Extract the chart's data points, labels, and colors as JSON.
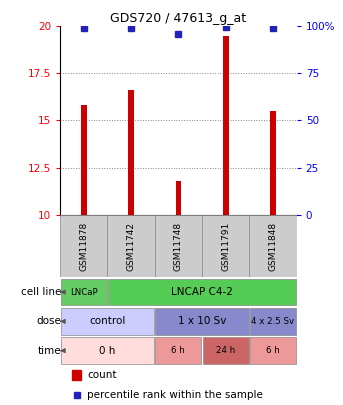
{
  "title": "GDS720 / 47613_g_at",
  "samples": [
    "GSM11878",
    "GSM11742",
    "GSM11748",
    "GSM11791",
    "GSM11848"
  ],
  "bar_values": [
    15.8,
    16.6,
    11.8,
    19.5,
    15.5
  ],
  "percentile_values": [
    99,
    99,
    96,
    99.5,
    99
  ],
  "ylim_left": [
    10,
    20
  ],
  "ylim_right": [
    0,
    100
  ],
  "yticks_left": [
    10,
    12.5,
    15,
    17.5,
    20
  ],
  "yticks_right": [
    0,
    25,
    50,
    75,
    100
  ],
  "ytick_labels_right": [
    "0",
    "25",
    "50",
    "75",
    "100%"
  ],
  "bar_color": "#cc0000",
  "dot_color": "#2222bb",
  "grid_color": "#888888",
  "sample_box_color": "#cccccc",
  "cell_line_data": [
    {
      "label": "LNCaP",
      "span": [
        0,
        1
      ],
      "color": "#66cc66"
    },
    {
      "label": "LNCAP C4-2",
      "span": [
        1,
        5
      ],
      "color": "#55cc55"
    }
  ],
  "dose_data": [
    {
      "label": "control",
      "span": [
        0,
        2
      ],
      "color": "#ccccff"
    },
    {
      "label": "1 x 10 Sv",
      "span": [
        2,
        4
      ],
      "color": "#8888cc"
    },
    {
      "label": "4 x 2.5 Sv",
      "span": [
        4,
        5
      ],
      "color": "#8888cc"
    }
  ],
  "time_data": [
    {
      "label": "0 h",
      "span": [
        0,
        2
      ],
      "color": "#ffdddd"
    },
    {
      "label": "6 h",
      "span": [
        2,
        3
      ],
      "color": "#ee9999"
    },
    {
      "label": "24 h",
      "span": [
        3,
        4
      ],
      "color": "#cc6666"
    },
    {
      "label": "6 h",
      "span": [
        4,
        5
      ],
      "color": "#ee9999"
    }
  ],
  "row_labels": [
    "cell line",
    "dose",
    "time"
  ],
  "bar_width": 0.12
}
